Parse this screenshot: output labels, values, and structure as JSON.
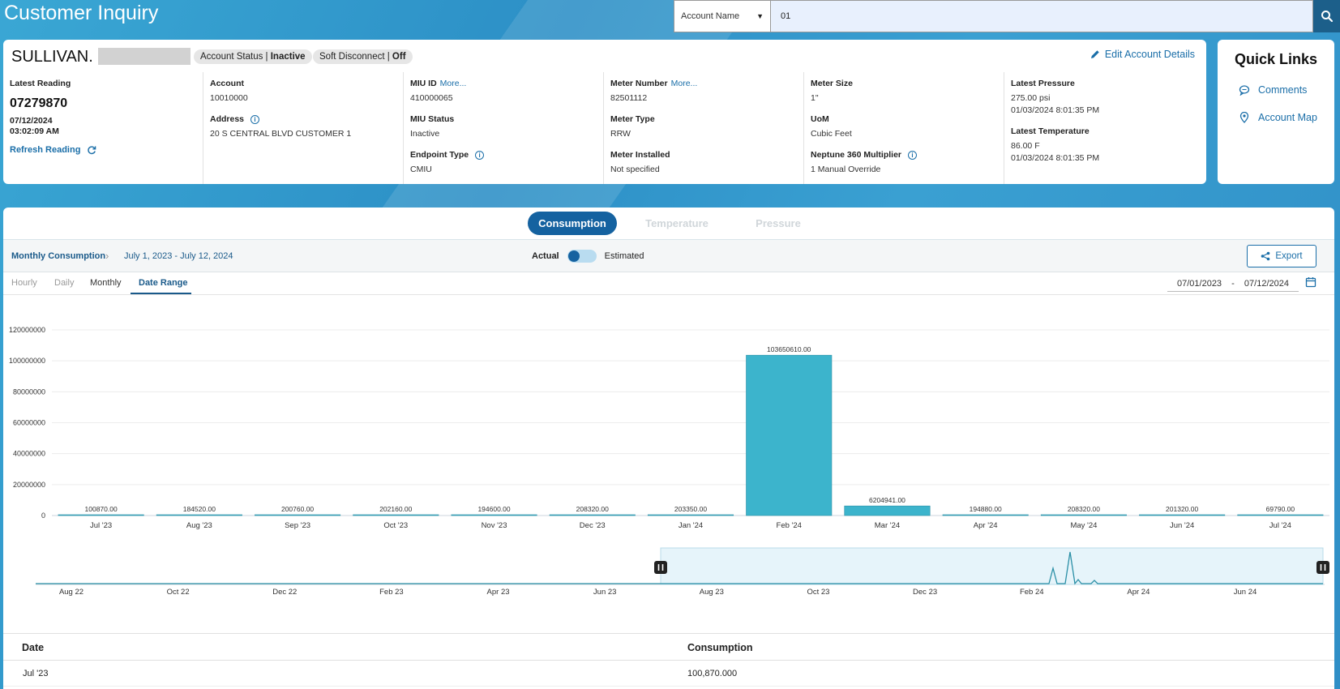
{
  "header": {
    "title": "Customer Inquiry"
  },
  "search": {
    "type_selected": "Account Name",
    "value": "01"
  },
  "account": {
    "name": "SULLIVAN.",
    "status_label": "Account Status | ",
    "status_value": "Inactive",
    "disconnect_label": "Soft Disconnect | ",
    "disconnect_value": "Off",
    "edit_label": "Edit Account Details",
    "latest_reading_label": "Latest Reading",
    "latest_reading_value": "07279870",
    "latest_reading_date": "07/12/2024",
    "latest_reading_time": "03:02:09 AM",
    "refresh_label": "Refresh Reading",
    "account_label": "Account",
    "account_value": "10010000",
    "address_label": "Address",
    "address_value": "20 S CENTRAL BLVD CUSTOMER 1",
    "miu_id_label": "MIU ID",
    "miu_more": "More...",
    "miu_id_value": "410000065",
    "miu_status_label": "MIU Status",
    "miu_status_value": "Inactive",
    "endpoint_type_label": "Endpoint Type",
    "endpoint_type_value": "CMIU",
    "meter_number_label": "Meter Number",
    "meter_more": "More...",
    "meter_number_value": "82501112",
    "meter_type_label": "Meter Type",
    "meter_type_value": "RRW",
    "meter_installed_label": "Meter Installed",
    "meter_installed_value": "Not specified",
    "meter_size_label": "Meter Size",
    "meter_size_value": "1\"",
    "uom_label": "UoM",
    "uom_value": "Cubic Feet",
    "multiplier_label": "Neptune 360 Multiplier",
    "multiplier_value": "1 Manual Override",
    "pressure_label": "Latest Pressure",
    "pressure_value": "275.00 psi",
    "pressure_date": "01/03/2024 8:01:35 PM",
    "temperature_label": "Latest Temperature",
    "temperature_value": "86.00 F",
    "temperature_date": "01/03/2024 8:01:35 PM"
  },
  "quick_links": {
    "title": "Quick Links",
    "items": [
      {
        "label": "Comments",
        "icon": "comment-icon"
      },
      {
        "label": "Account Map",
        "icon": "map-pin-icon"
      }
    ]
  },
  "tabs": {
    "consumption": "Consumption",
    "temperature": "Temperature",
    "pressure": "Pressure"
  },
  "subbar": {
    "breadcrumb": "Monthly Consumption",
    "range_text": "July 1, 2023 - July 12, 2024",
    "actual_label": "Actual",
    "estimated_label": "Estimated",
    "export_label": "Export"
  },
  "periods": {
    "hourly": "Hourly",
    "daily": "Daily",
    "monthly": "Monthly",
    "date_range": "Date Range"
  },
  "date_picker": {
    "start": "07/01/2023",
    "sep": "-",
    "end": "07/12/2024"
  },
  "chart_data": {
    "type": "bar",
    "categories": [
      "Jul '23",
      "Aug '23",
      "Sep '23",
      "Oct '23",
      "Nov '23",
      "Dec '23",
      "Jan '24",
      "Feb '24",
      "Mar '24",
      "Apr '24",
      "May '24",
      "Jun '24",
      "Jul '24"
    ],
    "values": [
      100870,
      184520,
      200760,
      202160,
      194600,
      208320,
      203350,
      103650610,
      6204941,
      194880,
      208320,
      201320,
      69790
    ],
    "data_labels": [
      "100870.00",
      "184520.00",
      "200760.00",
      "202160.00",
      "194600.00",
      "208320.00",
      "203350.00",
      "103650610.00",
      "6204941.00",
      "194880.00",
      "208320.00",
      "201320.00",
      "69790.00"
    ],
    "y_ticks": [
      "0",
      "20000000",
      "40000000",
      "60000000",
      "80000000",
      "100000000",
      "120000000"
    ],
    "ylim": [
      0,
      120000000
    ],
    "color": "#3cb4cc",
    "navigator_labels": [
      "Aug 22",
      "Oct 22",
      "Dec 22",
      "Feb 23",
      "Apr 23",
      "Jun 23",
      "Aug 23",
      "Oct 23",
      "Dec 23",
      "Feb 24",
      "Apr 24",
      "Jun 24"
    ]
  },
  "table": {
    "headers": [
      "Date",
      "Consumption"
    ],
    "rows": [
      [
        "Jul '23",
        "100,870.000"
      ]
    ]
  }
}
